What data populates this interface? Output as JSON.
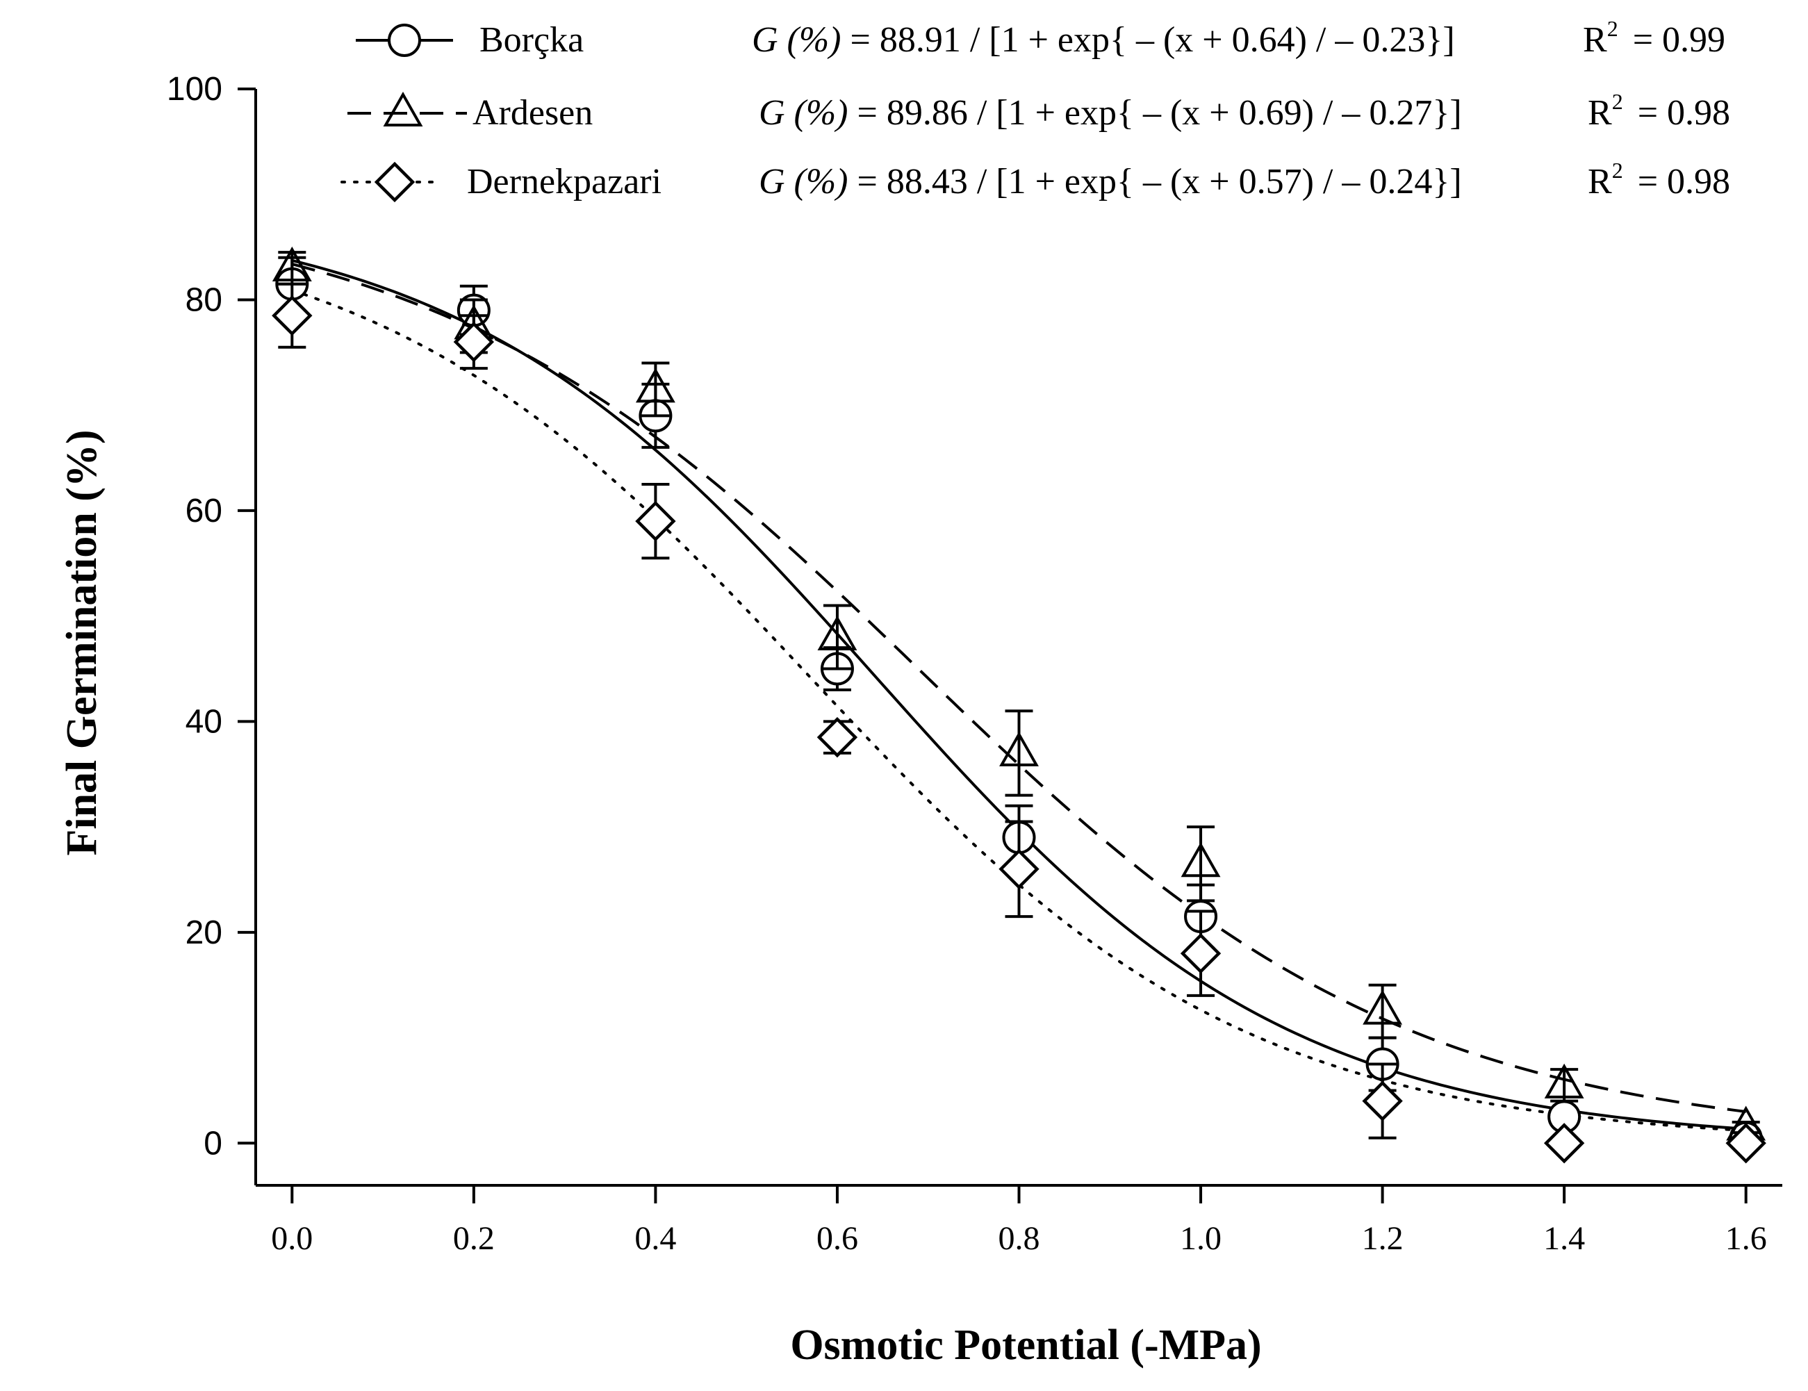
{
  "chart_data": {
    "type": "scatter",
    "title": "",
    "xlabel": "Osmotic Potential (-MPa)",
    "ylabel": "Final Germination (%)",
    "xlim": [
      -0.04,
      1.64
    ],
    "ylim": [
      -4,
      100
    ],
    "x_ticks": [
      "0.0",
      "0.2",
      "0.4",
      "0.6",
      "0.8",
      "1.0",
      "1.2",
      "1.4",
      "1.6"
    ],
    "x_tick_values": [
      0.0,
      0.2,
      0.4,
      0.6,
      0.8,
      1.0,
      1.2,
      1.4,
      1.6
    ],
    "y_ticks": [
      "0",
      "20",
      "40",
      "60",
      "80",
      "100"
    ],
    "y_tick_values": [
      0,
      20,
      40,
      60,
      80,
      100
    ],
    "grid": false,
    "legend_position": "top",
    "x": [
      0.0,
      0.2,
      0.4,
      0.6,
      0.8,
      1.0,
      1.2,
      1.4,
      1.6
    ],
    "series": [
      {
        "name": "Borçka",
        "marker": "circle",
        "line": "solid",
        "values": [
          81.5,
          79.0,
          69.0,
          45.0,
          29.0,
          21.5,
          7.5,
          2.5,
          0.5
        ],
        "errors": [
          2.5,
          2.3,
          3.0,
          2.0,
          3.0,
          3.0,
          2.5,
          0.5,
          0.5
        ],
        "fit": {
          "a": 88.91,
          "x0": 0.64,
          "b": 0.23
        },
        "equation": "= 88.91 / [1 + exp{ – (x + 0.64) / – 0.23}]",
        "r2": "= 0.99"
      },
      {
        "name": "Ardesen",
        "marker": "triangle",
        "line": "dashed",
        "values": [
          83.0,
          77.5,
          71.5,
          48.0,
          37.0,
          26.5,
          12.5,
          5.5,
          1.5
        ],
        "errors": [
          1.5,
          2.5,
          2.5,
          3.0,
          4.0,
          3.5,
          2.5,
          1.5,
          0.5
        ],
        "fit": {
          "a": 89.86,
          "x0": 0.69,
          "b": 0.27
        },
        "equation": "= 89.86 / [1 + exp{ – (x + 0.69) / – 0.27}]",
        "r2": "= 0.98"
      },
      {
        "name": "Dernekpazari",
        "marker": "diamond",
        "line": "dotted",
        "values": [
          78.5,
          76.0,
          59.0,
          38.5,
          26.0,
          18.0,
          4.0,
          0.0,
          0.0
        ],
        "errors": [
          3.0,
          2.5,
          3.5,
          1.5,
          4.5,
          4.0,
          3.5,
          0.3,
          0.3
        ],
        "fit": {
          "a": 88.43,
          "x0": 0.57,
          "b": 0.24
        },
        "equation": "= 88.43 / [1 + exp{ – (x + 0.57) / – 0.24}]",
        "r2": "= 0.98"
      }
    ],
    "equation_prefix": "G (%)",
    "r2_label": "R",
    "r2_sup": "2"
  }
}
